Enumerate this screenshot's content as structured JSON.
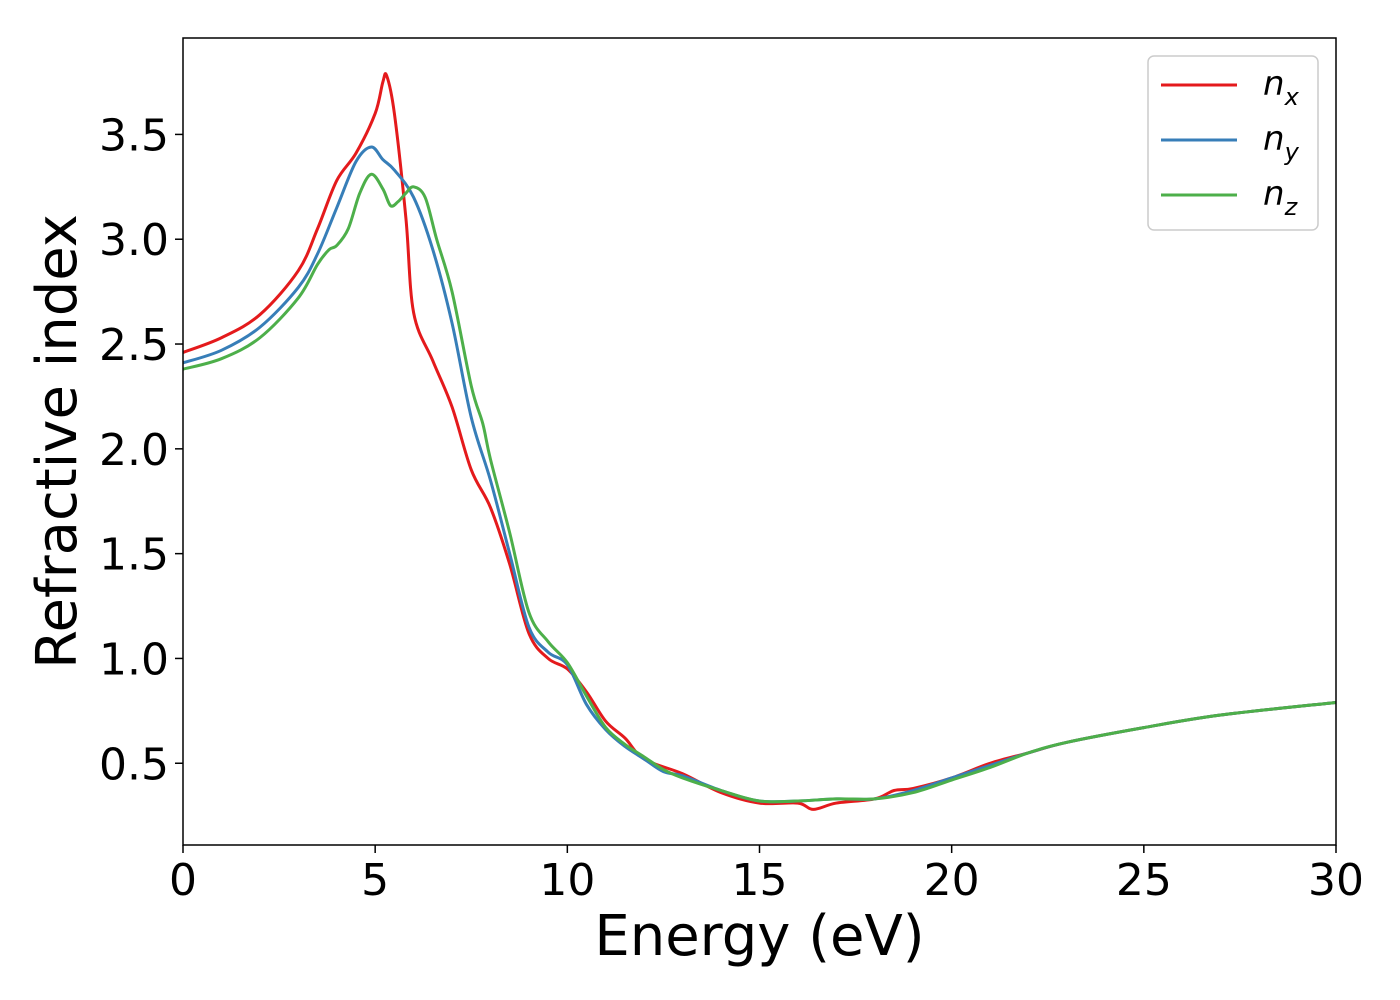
{
  "chart_data": {
    "type": "line",
    "title": "",
    "xlabel": "Energy (eV)",
    "ylabel": "Refractive index",
    "xlim": [
      0,
      30
    ],
    "ylim": [
      0.11,
      3.96
    ],
    "xticks": [
      0,
      5,
      10,
      15,
      20,
      25,
      30
    ],
    "yticks": [
      0.5,
      1.0,
      1.5,
      2.0,
      2.5,
      3.0,
      3.5
    ],
    "xtick_labels": [
      "0",
      "5",
      "10",
      "15",
      "20",
      "25",
      "30"
    ],
    "ytick_labels": [
      "0.5",
      "1.0",
      "1.5",
      "2.0",
      "2.5",
      "3.0",
      "3.5"
    ],
    "grid": false,
    "legend_position": "top-right",
    "series": [
      {
        "name": "n",
        "subscript": "x",
        "color": "#e41a1c",
        "x": [
          0,
          1,
          2,
          3,
          3.5,
          4,
          4.5,
          5,
          5.2,
          5.3,
          5.5,
          5.8,
          6,
          6.5,
          7,
          7.5,
          8,
          8.5,
          9,
          9.5,
          10,
          10.5,
          11,
          11.5,
          12,
          13,
          14,
          15,
          16,
          16.4,
          17,
          18,
          18.5,
          19,
          20,
          21,
          22,
          23,
          25,
          27,
          30
        ],
        "y": [
          2.46,
          2.53,
          2.64,
          2.85,
          3.05,
          3.28,
          3.41,
          3.6,
          3.75,
          3.78,
          3.6,
          3.1,
          2.65,
          2.42,
          2.2,
          1.9,
          1.72,
          1.45,
          1.12,
          1.0,
          0.95,
          0.84,
          0.7,
          0.62,
          0.52,
          0.45,
          0.36,
          0.31,
          0.31,
          0.28,
          0.31,
          0.33,
          0.37,
          0.38,
          0.43,
          0.5,
          0.55,
          0.6,
          0.67,
          0.73,
          0.79
        ]
      },
      {
        "name": "n",
        "subscript": "y",
        "color": "#377eb8",
        "x": [
          0,
          1,
          2,
          3,
          3.5,
          4,
          4.5,
          4.9,
          5.2,
          5.5,
          6,
          6.5,
          7,
          7.5,
          8,
          8.5,
          9,
          9.5,
          10,
          10.5,
          11,
          11.5,
          12,
          12.5,
          13,
          14,
          15,
          16,
          17,
          18,
          19,
          20,
          21,
          22,
          23,
          25,
          27,
          30
        ],
        "y": [
          2.41,
          2.47,
          2.58,
          2.77,
          2.93,
          3.15,
          3.37,
          3.44,
          3.38,
          3.33,
          3.2,
          2.95,
          2.6,
          2.15,
          1.85,
          1.5,
          1.15,
          1.03,
          0.97,
          0.78,
          0.66,
          0.58,
          0.52,
          0.46,
          0.44,
          0.37,
          0.32,
          0.32,
          0.33,
          0.33,
          0.37,
          0.43,
          0.49,
          0.55,
          0.6,
          0.67,
          0.73,
          0.79
        ]
      },
      {
        "name": "n",
        "subscript": "z",
        "color": "#4daf4a",
        "x": [
          0,
          1,
          2,
          3,
          3.5,
          3.8,
          4,
          4.3,
          4.6,
          4.9,
          5.2,
          5.4,
          5.6,
          5.8,
          6,
          6.3,
          6.6,
          7,
          7.5,
          7.8,
          8,
          8.5,
          9,
          9.5,
          10,
          10.5,
          11,
          11.5,
          12,
          12.5,
          13,
          14,
          15,
          16,
          17,
          18,
          19,
          20,
          21,
          22,
          23,
          25,
          27,
          30
        ],
        "y": [
          2.38,
          2.43,
          2.53,
          2.72,
          2.88,
          2.95,
          2.97,
          3.05,
          3.22,
          3.31,
          3.24,
          3.16,
          3.18,
          3.22,
          3.25,
          3.2,
          3.0,
          2.75,
          2.3,
          2.12,
          1.95,
          1.6,
          1.22,
          1.08,
          0.98,
          0.82,
          0.67,
          0.59,
          0.53,
          0.47,
          0.43,
          0.37,
          0.32,
          0.32,
          0.33,
          0.33,
          0.36,
          0.42,
          0.48,
          0.55,
          0.6,
          0.67,
          0.73,
          0.79
        ]
      }
    ]
  }
}
